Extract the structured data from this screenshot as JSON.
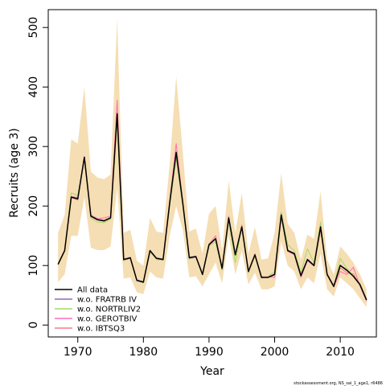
{
  "chart_data": {
    "type": "line",
    "title": "",
    "xlabel": "Year",
    "ylabel": "Recruits (age 3)",
    "xlim": [
      1965.5,
      2015.5
    ],
    "ylim": [
      -20,
      530
    ],
    "x_ticks": [
      1970,
      1980,
      1990,
      2000,
      2010
    ],
    "x_tick_labels": [
      "1970",
      "1980",
      "1990",
      "2000",
      "2010"
    ],
    "y_ticks": [
      0,
      100,
      200,
      300,
      400,
      500
    ],
    "y_tick_labels": [
      "0",
      "100",
      "200",
      "300",
      "400",
      "500"
    ],
    "grid": false,
    "legend_position": "bottom-left",
    "footnote": "stockassessment.org, NS_sai_1_age1, r6486",
    "band": {
      "color": "#f5deb3",
      "x": [
        1967,
        1968,
        1969,
        1970,
        1971,
        1972,
        1973,
        1974,
        1975,
        1976,
        1977,
        1978,
        1979,
        1980,
        1981,
        1982,
        1983,
        1984,
        1985,
        1986,
        1987,
        1988,
        1989,
        1990,
        1991,
        1992,
        1993,
        1994,
        1995,
        1996,
        1997,
        1998,
        1999,
        2000,
        2001,
        2002,
        2003,
        2004,
        2005,
        2006,
        2007,
        2008,
        2009,
        2010,
        2011,
        2012,
        2013,
        2014
      ],
      "lower": [
        72,
        85,
        150,
        150,
        215,
        130,
        126,
        126,
        132,
        230,
        78,
        80,
        55,
        52,
        90,
        80,
        78,
        150,
        200,
        160,
        80,
        82,
        65,
        85,
        105,
        70,
        150,
        85,
        125,
        68,
        88,
        60,
        60,
        65,
        140,
        100,
        90,
        60,
        80,
        70,
        120,
        60,
        48,
        80,
        70,
        60,
        45,
        30
      ],
      "upper": [
        155,
        185,
        312,
        305,
        400,
        258,
        248,
        245,
        253,
        515,
        155,
        160,
        108,
        100,
        180,
        157,
        155,
        270,
        418,
        290,
        157,
        162,
        120,
        187,
        200,
        125,
        243,
        155,
        222,
        120,
        165,
        110,
        112,
        155,
        255,
        170,
        155,
        110,
        152,
        145,
        225,
        110,
        85,
        132,
        120,
        105,
        85,
        60
      ]
    },
    "series": [
      {
        "name": "All data",
        "color": "#000000",
        "width": 1.5,
        "values": [
          102,
          125,
          215,
          212,
          282,
          183,
          177,
          175,
          180,
          355,
          110,
          113,
          75,
          72,
          125,
          112,
          110,
          205,
          290,
          205,
          113,
          115,
          85,
          135,
          145,
          95,
          180,
          118,
          165,
          90,
          118,
          80,
          80,
          85,
          185,
          125,
          120,
          83,
          110,
          100,
          165,
          85,
          65,
          100,
          92,
          82,
          68,
          42
        ]
      },
      {
        "name": "w.o. FRATRB IV",
        "color": "#9467bd",
        "width": 1,
        "values": [
          103,
          126,
          216,
          214,
          283,
          184,
          178,
          176,
          181,
          356,
          111,
          114,
          76,
          73,
          126,
          113,
          111,
          206,
          291,
          206,
          114,
          116,
          86,
          136,
          146,
          96,
          181,
          119,
          166,
          91,
          119,
          81,
          81,
          86,
          186,
          126,
          121,
          84,
          111,
          101,
          166,
          86,
          66,
          101,
          93,
          83,
          69,
          43
        ]
      },
      {
        "name": "w.o. NORTRLIV2",
        "color": "#a6d96a",
        "width": 1,
        "values": [
          101,
          124,
          222,
          218,
          278,
          180,
          173,
          172,
          178,
          340,
          108,
          112,
          74,
          71,
          123,
          110,
          109,
          200,
          280,
          200,
          111,
          114,
          84,
          133,
          140,
          92,
          175,
          105,
          165,
          88,
          116,
          79,
          82,
          90,
          190,
          135,
          125,
          88,
          128,
          105,
          173,
          85,
          64,
          112,
          95,
          83,
          70,
          44
        ]
      },
      {
        "name": "w.o. GEROTBIV",
        "color": "#ff6eb4",
        "width": 1,
        "values": [
          102,
          125,
          214,
          210,
          283,
          185,
          179,
          180,
          183,
          378,
          111,
          114,
          75,
          72,
          126,
          112,
          110,
          208,
          305,
          207,
          113,
          116,
          84,
          136,
          150,
          96,
          183,
          118,
          168,
          90,
          120,
          80,
          81,
          80,
          182,
          124,
          118,
          80,
          108,
          99,
          160,
          84,
          64,
          90,
          85,
          97,
          66,
          40
        ]
      },
      {
        "name": "w.o. IBTSQ3",
        "color": "#f08080",
        "width": 1,
        "values": [
          102,
          125,
          216,
          213,
          282,
          184,
          178,
          176,
          180,
          358,
          110,
          113,
          75,
          72,
          125,
          112,
          110,
          205,
          292,
          205,
          113,
          115,
          85,
          136,
          146,
          96,
          181,
          118,
          166,
          90,
          119,
          80,
          80,
          84,
          184,
          124,
          119,
          82,
          109,
          99,
          163,
          84,
          64,
          96,
          88,
          86,
          67,
          42
        ]
      }
    ]
  }
}
